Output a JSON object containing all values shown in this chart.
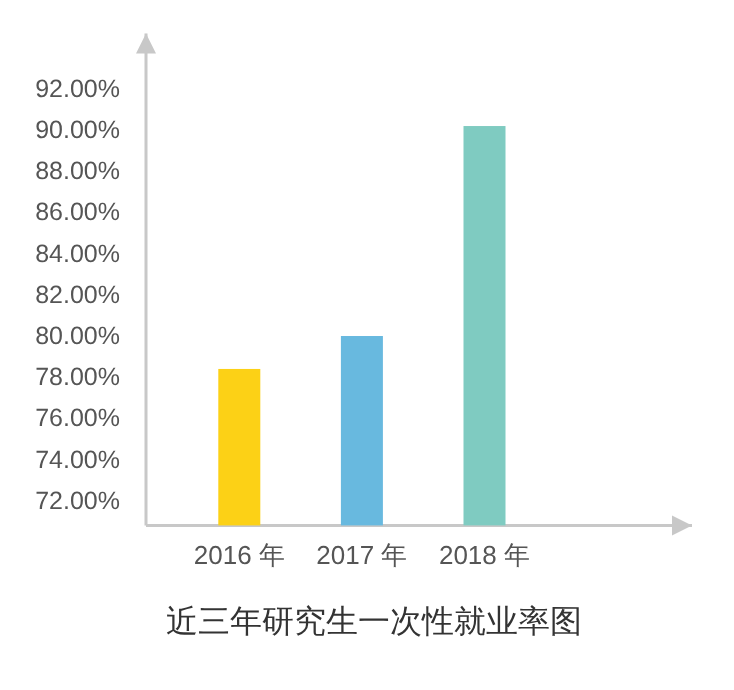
{
  "chart_data": {
    "type": "bar",
    "title": "近三年研究生一次性就业率图",
    "categories": [
      "2016 年",
      "2017 年",
      "2018 年"
    ],
    "values": [
      78.4,
      80.0,
      90.2
    ],
    "colors": [
      "#fcd116",
      "#68b9df",
      "#7fcbc1"
    ],
    "ylim": [
      70.8,
      94.7
    ],
    "yticks": [
      {
        "value": 72,
        "label": "72.00%"
      },
      {
        "value": 74,
        "label": "74.00%"
      },
      {
        "value": 76,
        "label": "76.00%"
      },
      {
        "value": 78,
        "label": "78.00%"
      },
      {
        "value": 80,
        "label": "80.00%"
      },
      {
        "value": 82,
        "label": "82.00%"
      },
      {
        "value": 84,
        "label": "84.00%"
      },
      {
        "value": 86,
        "label": "86.00%"
      },
      {
        "value": 88,
        "label": "88.00%"
      },
      {
        "value": 90,
        "label": "90.00%"
      },
      {
        "value": 92,
        "label": "92.00%"
      }
    ],
    "grid": false
  }
}
